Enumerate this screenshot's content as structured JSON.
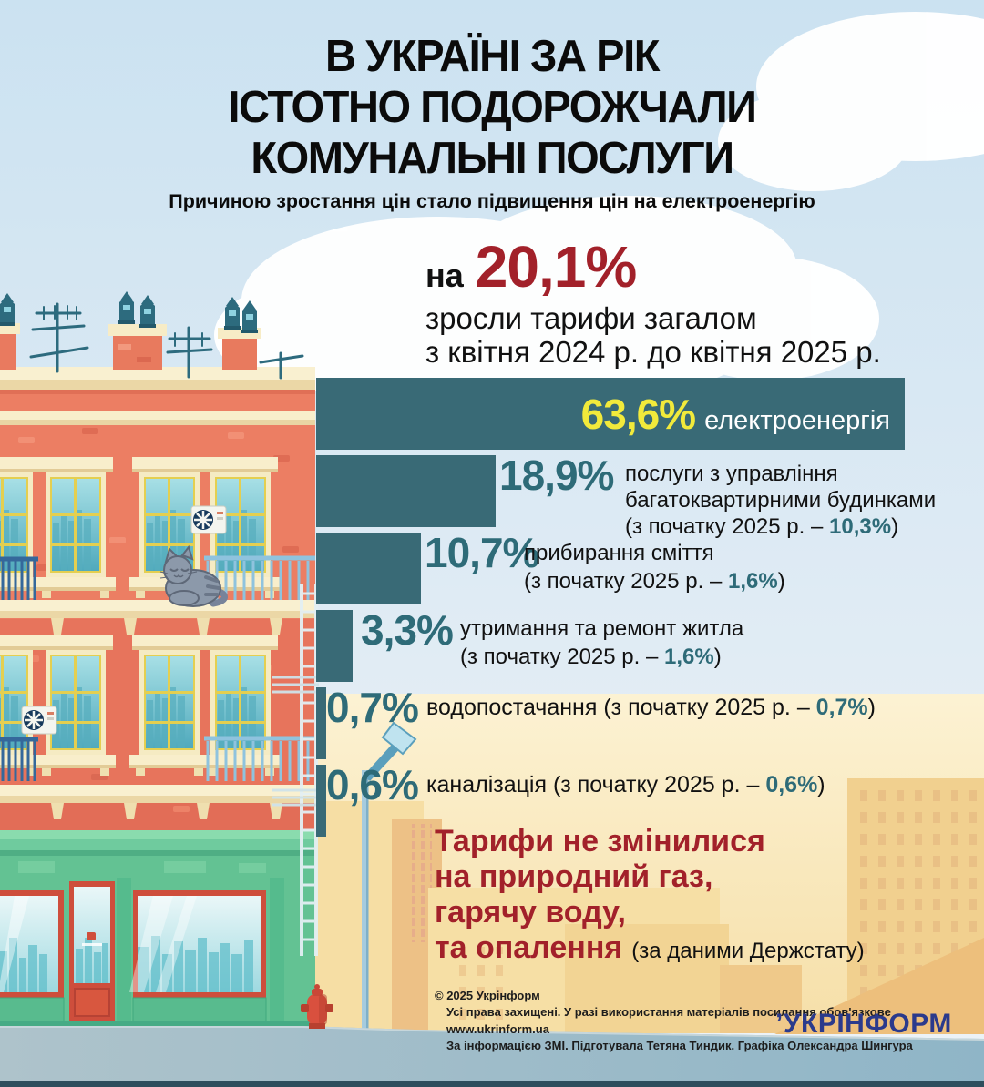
{
  "header": {
    "title_lines": [
      "В УКРАЇНІ ЗА РІК",
      "ІСТОТНО ПОДОРОЖЧАЛИ",
      "КОМУНАЛЬНІ ПОСЛУГИ"
    ],
    "subtitle": "Причиною зростання цін стало підвищення цін на електроенергію"
  },
  "headline_stat": {
    "prefix": "на",
    "value": "20,1%",
    "description_lines": [
      "зросли тарифи загалом",
      "з квітня 2024 р. до квітня 2025 р."
    ]
  },
  "chart_data": {
    "type": "bar",
    "orientation": "horizontal",
    "unit": "%",
    "xlim": [
      0,
      63.6
    ],
    "grid": false,
    "legend": false,
    "bar_color": "#396A76",
    "series": [
      {
        "name": "електроенергія",
        "value": 63.6,
        "value_label": "63,6%"
      },
      {
        "name": "послуги з управління багатоквартирними будинками",
        "value": 18.9,
        "value_label": "18,9%",
        "label_lines": [
          "послуги з управління",
          "багатоквартирними будинками"
        ],
        "since_start_2025": {
          "prefix": "(з початку 2025 р. – ",
          "value": "10,3%",
          "suffix": ")"
        }
      },
      {
        "name": "прибирання сміття",
        "value": 10.7,
        "value_label": "10,7%",
        "label_lines": [
          "прибирання сміття"
        ],
        "since_start_2025": {
          "prefix": "(з початку 2025 р. – ",
          "value": "1,6%",
          "suffix": ")"
        }
      },
      {
        "name": "утримання та ремонт житла",
        "value": 3.3,
        "value_label": "3,3%",
        "label_lines": [
          "утримання та ремонт житла"
        ],
        "since_start_2025": {
          "prefix": "(з початку 2025 р. – ",
          "value": "1,6%",
          "suffix": ")"
        }
      },
      {
        "name": "водопостачання",
        "value": 0.7,
        "value_label": "0,7%",
        "since_start_2025": {
          "prefix": "(з початку 2025 р. – ",
          "value": "0,7%",
          "suffix": ")"
        }
      },
      {
        "name": "каналізація",
        "value": 0.6,
        "value_label": "0,6%",
        "since_start_2025": {
          "prefix": "(з початку 2025 р. – ",
          "value": "0,6%",
          "suffix": ")"
        }
      }
    ]
  },
  "no_change_note": {
    "lines": [
      "Тарифи не змінилися",
      "на природний газ,",
      "гарячу воду,",
      "та опалення"
    ],
    "source": "(за даними Держстату)"
  },
  "footer": {
    "copyright": "© 2025 Укрінформ",
    "rights": "Усі права захищені. У разі використання матеріалів посилання обов'язкове",
    "website": "www.ukrinform.ua",
    "credits": "За інформацією ЗМІ. Підготувала Тетяна Тиндик. Графіка Олександра Шингура",
    "logo_mark": "’",
    "logo_text": "УКРІНФОРМ"
  },
  "colors": {
    "headline_red": "#A2212A",
    "bar_teal": "#396A76",
    "number_teal": "#2E6B78",
    "value_yellow": "#F2EA3B",
    "logo_blue": "#2B3A8C"
  }
}
